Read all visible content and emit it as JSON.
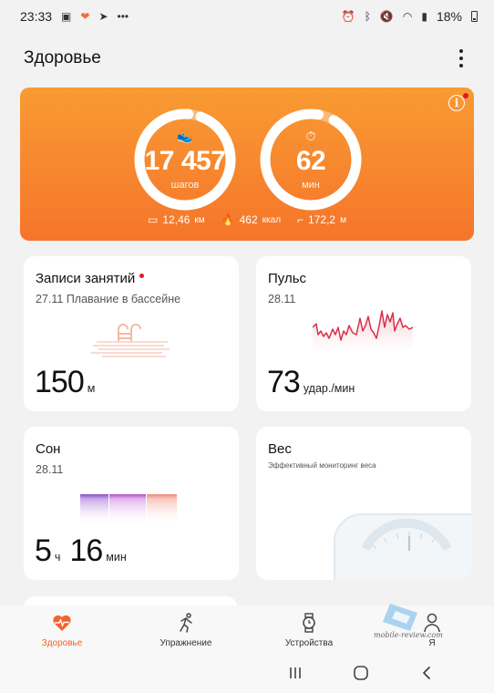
{
  "status_bar": {
    "time": "23:33",
    "battery": "18%"
  },
  "header": {
    "title": "Здоровье"
  },
  "hero": {
    "steps": {
      "value": "17 457",
      "unit": "шагов"
    },
    "minutes": {
      "value": "62",
      "unit": "мин"
    },
    "stats": [
      {
        "icon": "distance-icon",
        "value": "12,46",
        "unit": "км"
      },
      {
        "icon": "flame-icon",
        "value": "462",
        "unit": "ккал"
      },
      {
        "icon": "stairs-icon",
        "value": "172,2",
        "unit": "м"
      }
    ]
  },
  "cards": {
    "workouts": {
      "title": "Записи занятий",
      "subtitle": "27.11 Плавание в бассейне",
      "value": "150",
      "unit": "м"
    },
    "pulse": {
      "title": "Пульс",
      "subtitle": "28.11",
      "value": "73",
      "unit": "удар./мин"
    },
    "sleep": {
      "title": "Сон",
      "subtitle": "28.11",
      "hours": "5",
      "hours_unit": "ч",
      "minutes": "16",
      "minutes_unit": "мин"
    },
    "weight": {
      "title": "Вес",
      "subtitle": "Эффективный мониторинг веса"
    }
  },
  "bottom_nav": [
    {
      "label": "Здоровье",
      "icon": "heart-pulse-icon",
      "active": true
    },
    {
      "label": "Упражнение",
      "icon": "runner-icon",
      "active": false
    },
    {
      "label": "Устройства",
      "icon": "watch-icon",
      "active": false
    },
    {
      "label": "Я",
      "icon": "person-icon",
      "active": false
    }
  ],
  "watermark": "mobile-review.com",
  "colors": {
    "accent": "#f3632e",
    "hero_top": "#f99b33",
    "hero_bottom": "#f5752a",
    "pulse_line": "#d9314a"
  }
}
